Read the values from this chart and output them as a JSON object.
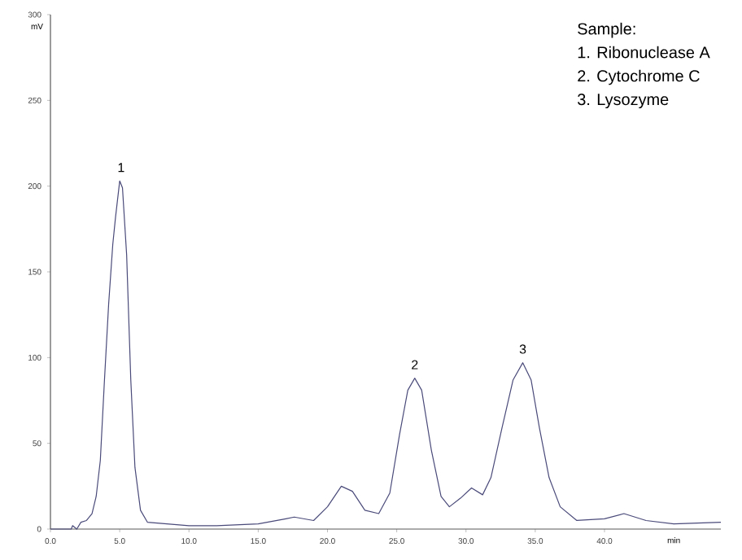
{
  "chart_data": {
    "type": "line",
    "xlabel": "min",
    "ylabel": "mV",
    "x": [
      0,
      1.5,
      1.6,
      1.9,
      2.2,
      2.6,
      3.0,
      3.3,
      3.6,
      3.9,
      4.2,
      4.5,
      4.7,
      5.0,
      5.2,
      5.5,
      5.8,
      6.1,
      6.5,
      7.0,
      10,
      12,
      15,
      17,
      17.6,
      19,
      20,
      21,
      21.8,
      22.7,
      23.7,
      24.5,
      25.2,
      25.8,
      26.3,
      26.8,
      27.5,
      28.2,
      28.8,
      29.6,
      30.4,
      31.2,
      31.8,
      32.6,
      33.4,
      34.1,
      34.7,
      35.3,
      36.0,
      36.8,
      38,
      40,
      41.4,
      43,
      45,
      48.4
    ],
    "series": [
      {
        "color": "#4a4a7a",
        "values": [
          0,
          0,
          2,
          0,
          4,
          5,
          9,
          19,
          40,
          87,
          131,
          166,
          182,
          203,
          199,
          160,
          87,
          36,
          11,
          4,
          2,
          2,
          3,
          6,
          7,
          5,
          13,
          25,
          22,
          11,
          9,
          21,
          55,
          81,
          88,
          81,
          46,
          19,
          13,
          18,
          24,
          20,
          30,
          59,
          87,
          97,
          87,
          59,
          30,
          13,
          5,
          6,
          9,
          5,
          3,
          4
        ]
      }
    ],
    "xlim": [
      0,
      48.4
    ],
    "ylim": [
      0,
      300
    ],
    "xticks": [
      {
        "value": 0,
        "label": "0.0"
      },
      {
        "value": 5,
        "label": "5.0"
      },
      {
        "value": 10,
        "label": "10.0"
      },
      {
        "value": 15,
        "label": "15.0"
      },
      {
        "value": 20,
        "label": "20.0"
      },
      {
        "value": 25,
        "label": "25.0"
      },
      {
        "value": 30,
        "label": "30.0"
      },
      {
        "value": 35,
        "label": "35.0"
      },
      {
        "value": 40,
        "label": "40.0"
      }
    ],
    "yticks": [
      0,
      50,
      100,
      150,
      200,
      250,
      300
    ],
    "annotations": [
      {
        "text": "1",
        "x": 5.1,
        "y": 203
      },
      {
        "text": "2",
        "x": 26.3,
        "y": 88
      },
      {
        "text": "3",
        "x": 34.1,
        "y": 97
      },
      "Sample:",
      "1. Ribonuclease A",
      "2. Cytochrome C",
      "3. Lysozyme"
    ],
    "grid": false,
    "marker": "none",
    "line_style": "solid"
  }
}
